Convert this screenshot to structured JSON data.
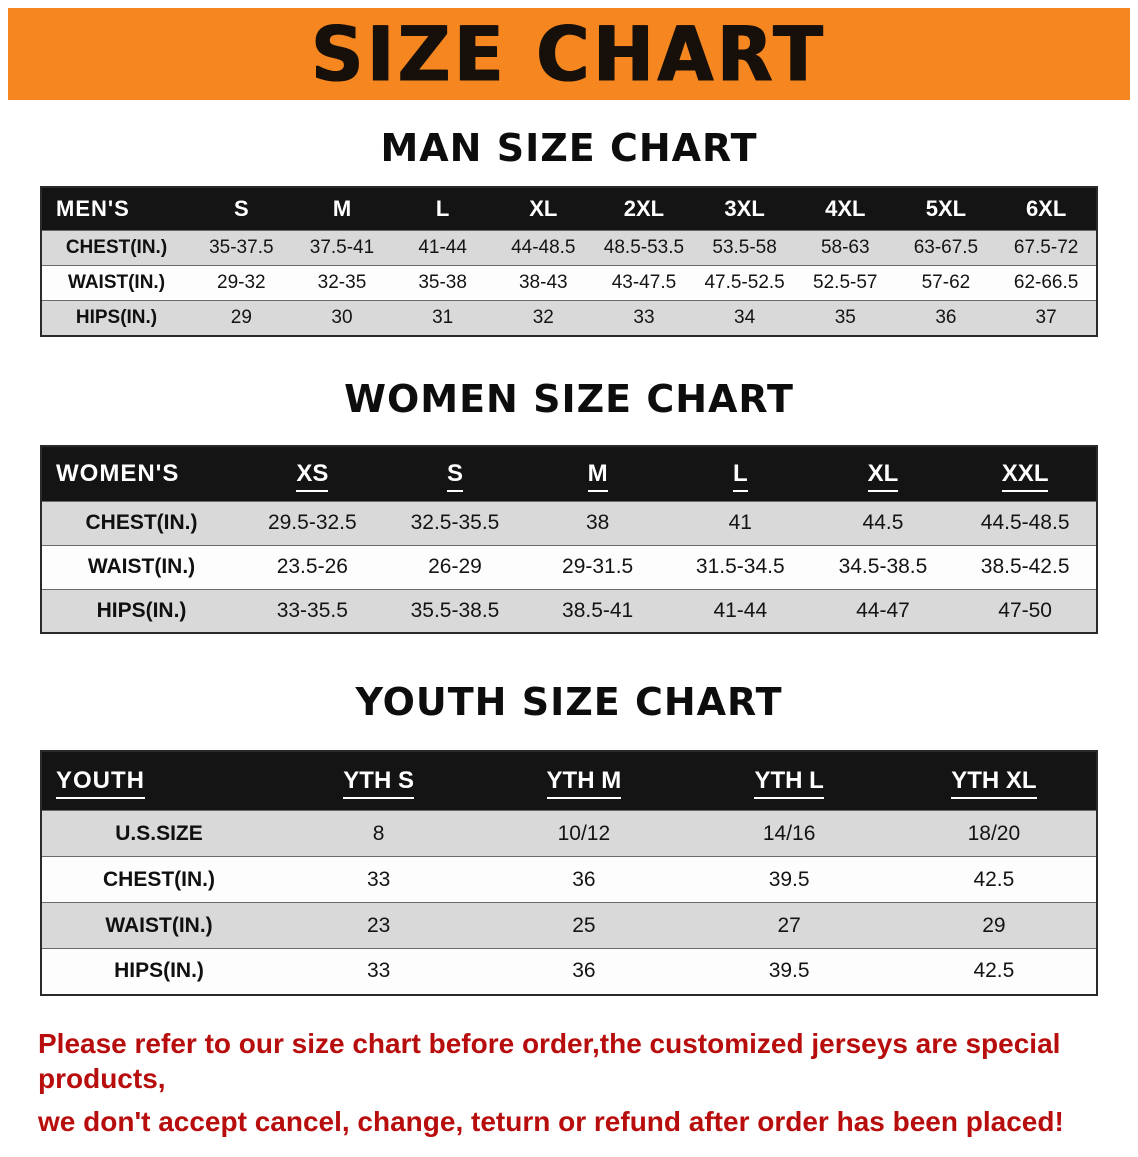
{
  "banner": {
    "title": "SIZE CHART"
  },
  "colors": {
    "banner_orange": "#f6861f",
    "table_header_black": "#141414",
    "row_gray": "#d9d9d9",
    "row_white": "#fdfdfd",
    "disclaimer_red": "#b80d0d"
  },
  "sections": [
    {
      "heading": "MAN SIZE CHART",
      "table": {
        "corner": "MEN'S",
        "columns": [
          "S",
          "M",
          "L",
          "XL",
          "2XL",
          "3XL",
          "4XL",
          "5XL",
          "6XL"
        ],
        "rows": [
          {
            "label": "CHEST(IN.)",
            "values": [
              "35-37.5",
              "37.5-41",
              "41-44",
              "44-48.5",
              "48.5-53.5",
              "53.5-58",
              "58-63",
              "63-67.5",
              "67.5-72"
            ]
          },
          {
            "label": "WAIST(IN.)",
            "values": [
              "29-32",
              "32-35",
              "35-38",
              "38-43",
              "43-47.5",
              "47.5-52.5",
              "52.5-57",
              "57-62",
              "62-66.5"
            ]
          },
          {
            "label": "HIPS(IN.)",
            "values": [
              "29",
              "30",
              "31",
              "32",
              "33",
              "34",
              "35",
              "36",
              "37"
            ]
          }
        ]
      }
    },
    {
      "heading": "WOMEN SIZE CHART",
      "table": {
        "corner": "WOMEN'S",
        "columns": [
          "XS",
          "S",
          "M",
          "L",
          "XL",
          "XXL"
        ],
        "rows": [
          {
            "label": "CHEST(IN.)",
            "values": [
              "29.5-32.5",
              "32.5-35.5",
              "38",
              "41",
              "44.5",
              "44.5-48.5"
            ]
          },
          {
            "label": "WAIST(IN.)",
            "values": [
              "23.5-26",
              "26-29",
              "29-31.5",
              "31.5-34.5",
              "34.5-38.5",
              "38.5-42.5"
            ]
          },
          {
            "label": "HIPS(IN.)",
            "values": [
              "33-35.5",
              "35.5-38.5",
              "38.5-41",
              "41-44",
              "44-47",
              "47-50"
            ]
          }
        ]
      }
    },
    {
      "heading": "YOUTH SIZE CHART",
      "table": {
        "corner": "YOUTH",
        "columns": [
          "YTH S",
          "YTH M",
          "YTH L",
          "YTH XL"
        ],
        "rows": [
          {
            "label": "U.S.SIZE",
            "values": [
              "8",
              "10/12",
              "14/16",
              "18/20"
            ]
          },
          {
            "label": "CHEST(IN.)",
            "values": [
              "33",
              "36",
              "39.5",
              "42.5"
            ]
          },
          {
            "label": "WAIST(IN.)",
            "values": [
              "23",
              "25",
              "27",
              "29"
            ]
          },
          {
            "label": "HIPS(IN.)",
            "values": [
              "33",
              "36",
              "39.5",
              "42.5"
            ]
          }
        ]
      }
    }
  ],
  "disclaimer": {
    "line1": "Please refer to our size chart before order,the customized jerseys are special products,",
    "line2": "we don't accept cancel, change, teturn or refund after order has been placed!"
  }
}
